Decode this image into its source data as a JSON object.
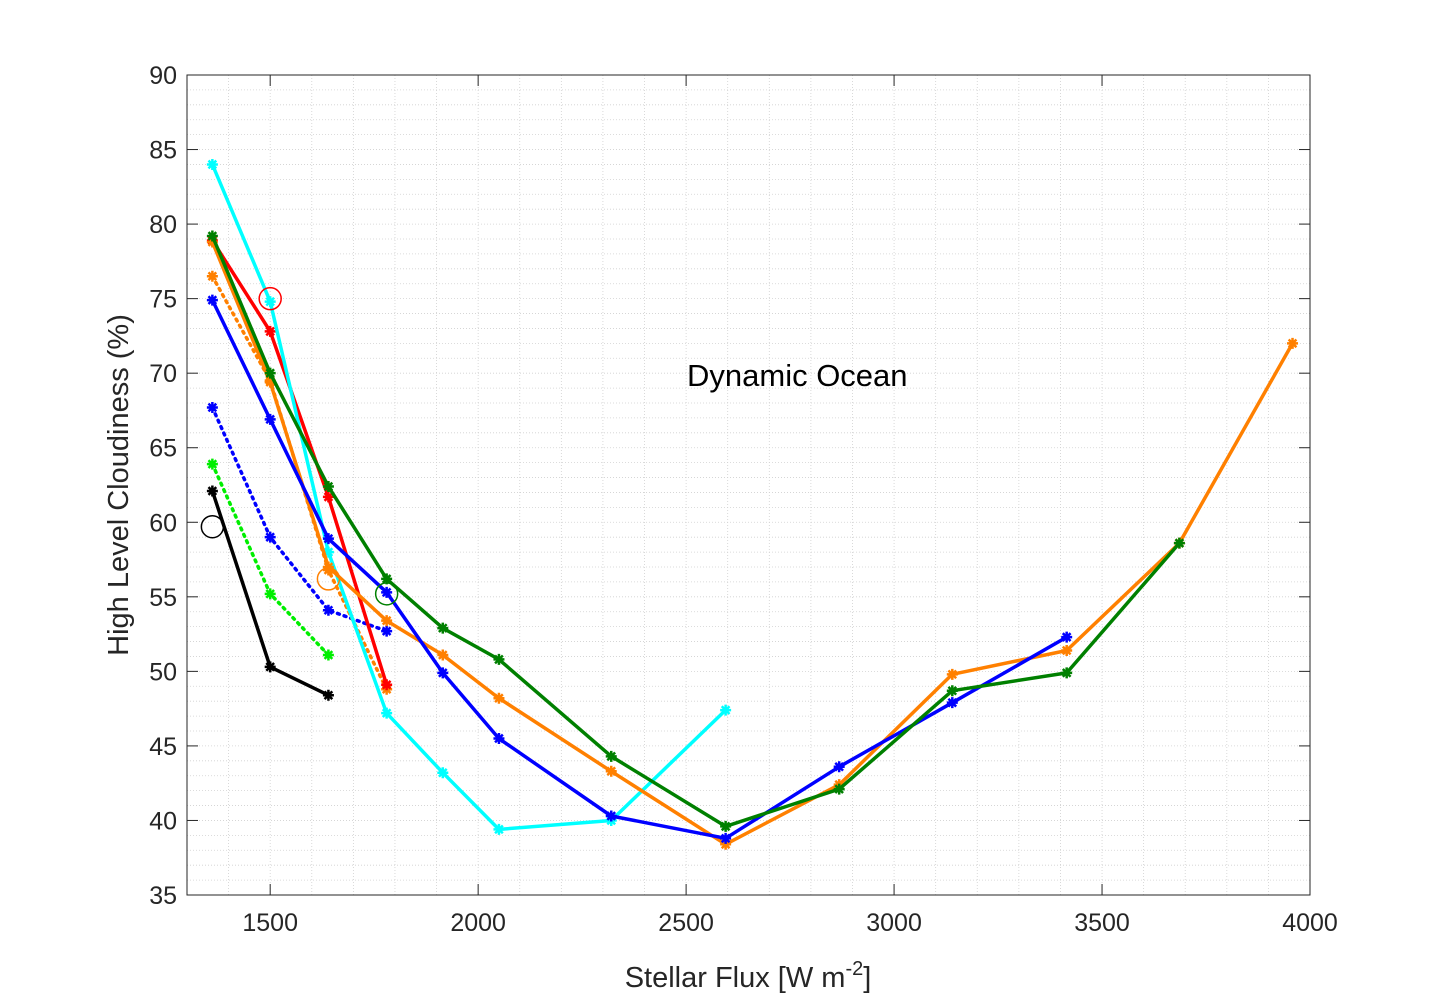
{
  "chart_data": {
    "type": "line",
    "title": "",
    "xlabel_main": "Stellar Flux [W m",
    "xlabel_exp": "-2",
    "xlabel_close": "]",
    "ylabel": "High Level Cloudiness (%)",
    "annotation": "Dynamic Ocean",
    "xlim": [
      1300,
      4000
    ],
    "ylim": [
      35,
      90
    ],
    "xticks": [
      1500,
      2000,
      2500,
      3000,
      3500,
      4000
    ],
    "xtick_labels": [
      "1500",
      "2000",
      "2500",
      "3000",
      "3500",
      "4000"
    ],
    "yticks": [
      35,
      40,
      45,
      50,
      55,
      60,
      65,
      70,
      75,
      80,
      85,
      90
    ],
    "ytick_labels": [
      "35",
      "40",
      "45",
      "50",
      "55",
      "60",
      "65",
      "70",
      "75",
      "80",
      "85",
      "90"
    ],
    "grid": "minor dotted",
    "series": [
      {
        "name": "black-solid",
        "color": "#000000",
        "style": "solid",
        "x": [
          1361,
          1500,
          1640
        ],
        "y": [
          62.1,
          50.3,
          48.4
        ]
      },
      {
        "name": "green-dotted",
        "color": "#00ee00",
        "style": "dotted",
        "x": [
          1361,
          1500,
          1640
        ],
        "y": [
          63.9,
          55.2,
          51.1
        ]
      },
      {
        "name": "blue-dotted",
        "color": "#0000ff",
        "style": "dotted",
        "x": [
          1361,
          1500,
          1640,
          1780
        ],
        "y": [
          67.7,
          59.0,
          54.1,
          52.7
        ]
      },
      {
        "name": "orange-dotted",
        "color": "#ff8000",
        "style": "dotted",
        "x": [
          1361,
          1500,
          1640,
          1780
        ],
        "y": [
          76.5,
          69.5,
          56.8,
          48.8
        ]
      },
      {
        "name": "red-solid",
        "color": "#ff0000",
        "style": "solid",
        "x": [
          1361,
          1500,
          1640,
          1780
        ],
        "y": [
          78.9,
          72.8,
          61.7,
          49.1
        ]
      },
      {
        "name": "cyan-solid",
        "color": "#00ffff",
        "style": "solid",
        "x": [
          1361,
          1500,
          1640,
          1780,
          1915,
          2050,
          2320,
          2595
        ],
        "y": [
          84.0,
          74.8,
          58.0,
          47.2,
          43.2,
          39.4,
          40.0,
          47.4
        ]
      },
      {
        "name": "orange-solid",
        "color": "#ff8000",
        "style": "solid",
        "x": [
          1361,
          1500,
          1640,
          1780,
          1915,
          2050,
          2320,
          2595,
          2868,
          3140,
          3415,
          3686,
          3958
        ],
        "y": [
          78.8,
          69.4,
          57.0,
          53.4,
          51.1,
          48.2,
          43.3,
          38.4,
          42.4,
          49.8,
          51.4,
          58.6,
          72.0
        ]
      },
      {
        "name": "blue-solid",
        "color": "#0000ff",
        "style": "solid",
        "x": [
          1361,
          1500,
          1640,
          1780,
          1915,
          2050,
          2320,
          2595,
          2868,
          3140,
          3415
        ],
        "y": [
          74.9,
          66.9,
          58.9,
          55.3,
          49.9,
          45.5,
          40.3,
          38.8,
          43.6,
          47.9,
          52.3
        ]
      },
      {
        "name": "green-solid",
        "color": "#008000",
        "style": "solid",
        "x": [
          1361,
          1500,
          1640,
          1780,
          1915,
          2050,
          2320,
          2595,
          2868,
          3140,
          3415,
          3686
        ],
        "y": [
          79.2,
          70.0,
          62.4,
          56.2,
          52.9,
          50.8,
          44.3,
          39.6,
          42.1,
          48.7,
          49.9,
          58.6
        ]
      }
    ],
    "circle_markers": [
      {
        "name": "black-circle",
        "color": "#000000",
        "x": 1361,
        "y": 59.7
      },
      {
        "name": "red-circle",
        "color": "#ff0000",
        "x": 1500,
        "y": 75.0
      },
      {
        "name": "orange-circle",
        "color": "#ff8000",
        "x": 1640,
        "y": 56.2
      },
      {
        "name": "green-circle",
        "color": "#008000",
        "x": 1780,
        "y": 55.2
      }
    ]
  }
}
